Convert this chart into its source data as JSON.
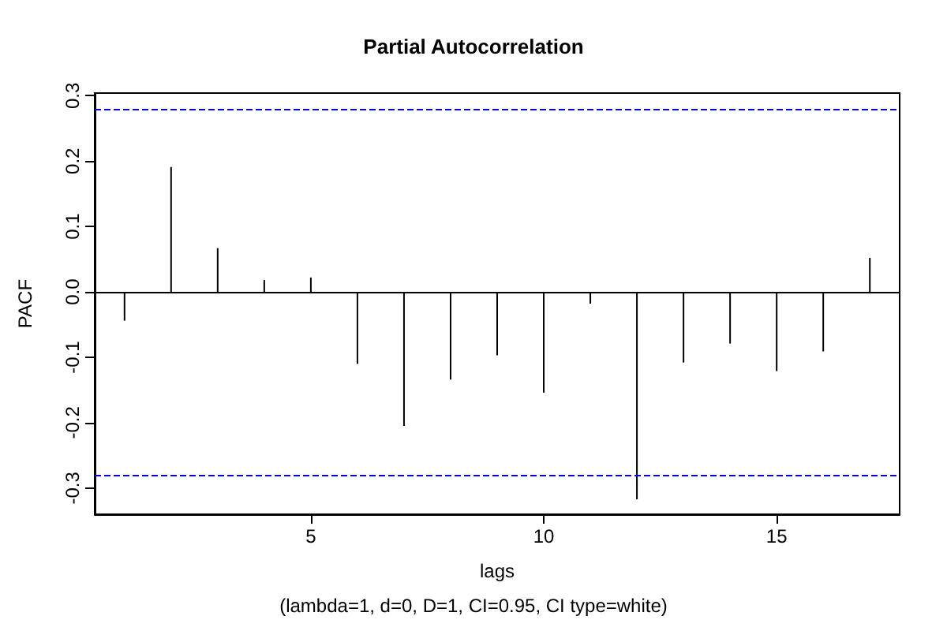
{
  "chart_data": {
    "type": "bar",
    "title": "Partial Autocorrelation",
    "xlabel": "lags",
    "ylabel": "PACF",
    "annotations": [
      "(lambda=1, d=0, D=1, CI=0.95, CI type=white)"
    ],
    "x": [
      1,
      2,
      3,
      4,
      5,
      6,
      7,
      8,
      9,
      10,
      11,
      12,
      13,
      14,
      15,
      16,
      17
    ],
    "values": [
      -0.044,
      0.191,
      0.067,
      0.018,
      0.022,
      -0.11,
      -0.205,
      -0.134,
      -0.097,
      -0.154,
      -0.018,
      -0.317,
      -0.108,
      -0.079,
      -0.121,
      -0.091,
      0.052
    ],
    "color": "#000000",
    "marker": "none",
    "xlim": [
      0.36,
      17.64
    ],
    "xticks": [
      5,
      10,
      15
    ],
    "ylim": [
      -0.34,
      0.304
    ],
    "yticks": [
      -0.3,
      -0.2,
      -0.1,
      {
        "value": 0,
        "label": "0.0"
      },
      0.1,
      0.2,
      0.3
    ],
    "ref_lines": [
      {
        "axis": "y",
        "value": 0.28,
        "color": "#0000ff",
        "line_style": "dashed"
      },
      {
        "axis": "y",
        "value": -0.28,
        "color": "#0000ff",
        "line_style": "dashed"
      },
      {
        "axis": "y",
        "value": 0,
        "color": "#000000",
        "line_style": "solid"
      }
    ],
    "grid": false
  }
}
